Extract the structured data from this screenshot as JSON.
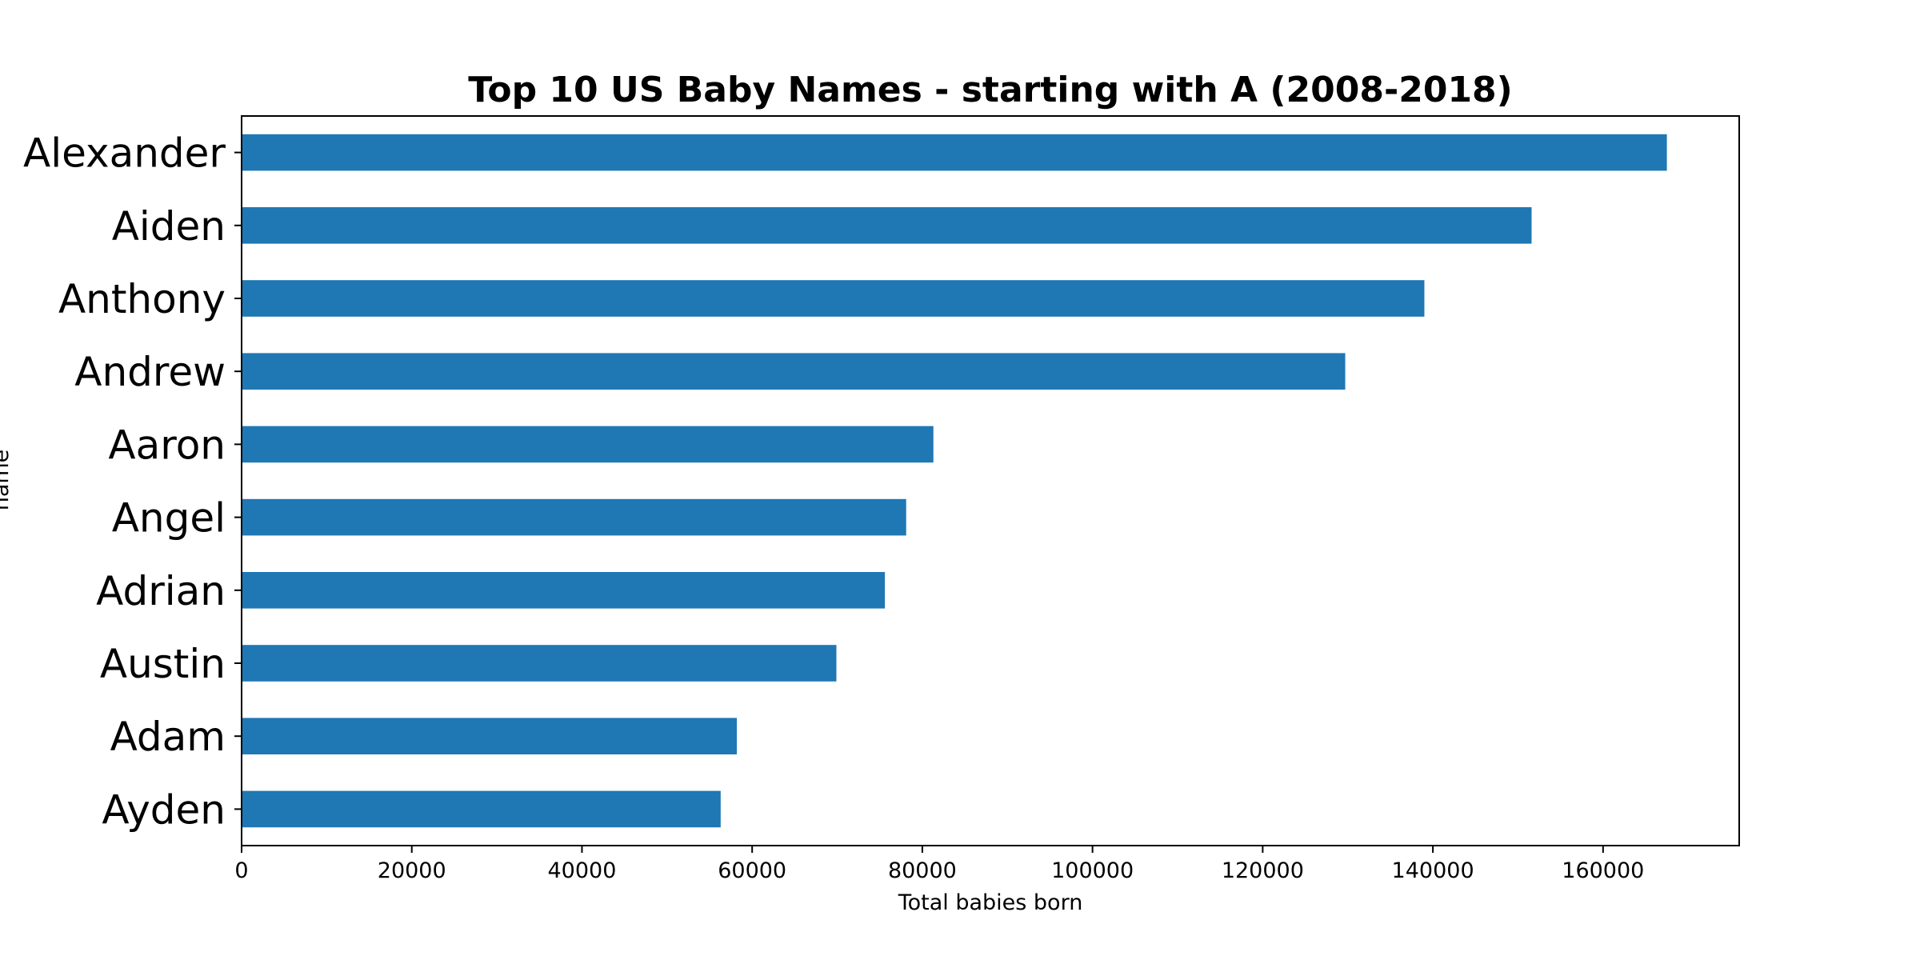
{
  "chart_data": {
    "type": "bar",
    "orientation": "horizontal",
    "title": "Top 10 US Baby Names - starting with A (2008-2018)",
    "xlabel": "Total babies born",
    "ylabel": "name",
    "categories": [
      "Alexander",
      "Aiden",
      "Anthony",
      "Andrew",
      "Aaron",
      "Angel",
      "Adrian",
      "Austin",
      "Adam",
      "Ayden"
    ],
    "values": [
      167500,
      151600,
      139000,
      129700,
      81300,
      78100,
      75600,
      69900,
      58200,
      56300
    ],
    "xlim": [
      0,
      176000
    ],
    "xticks": [
      0,
      20000,
      40000,
      60000,
      80000,
      100000,
      120000,
      140000,
      160000
    ],
    "xtick_labels": [
      "0",
      "20000",
      "40000",
      "60000",
      "80000",
      "100000",
      "120000",
      "140000",
      "160000"
    ],
    "bar_color": "#1f77b4",
    "grid": false,
    "legend": "none"
  }
}
